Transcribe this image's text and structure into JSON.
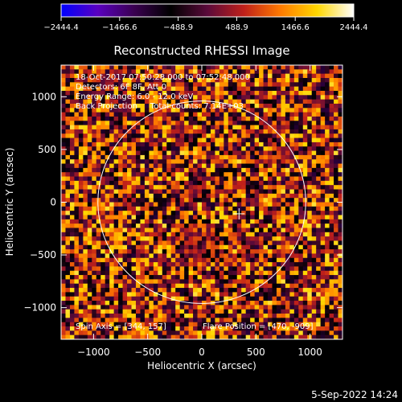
{
  "chart_data": {
    "type": "heatmap",
    "title": "Reconstructed RHESSI Image",
    "xlabel": "Heliocentric X (arcsec)",
    "ylabel": "Heliocentric Y (arcsec)",
    "xlim": [
      -1300,
      1300
    ],
    "ylim": [
      -1300,
      1300
    ],
    "xticks": [
      -1000,
      -500,
      0,
      500,
      1000
    ],
    "yticks": [
      -1000,
      -500,
      0,
      500,
      1000
    ],
    "xtick_labels": [
      "−1000",
      "−500",
      "0",
      "500",
      "1000"
    ],
    "ytick_labels": [
      "−1000",
      "−500",
      "0",
      "500",
      "1000"
    ],
    "colorbar": {
      "min": -2444.4,
      "max": 2444.4,
      "ticks": [
        -2444.4,
        -1466.6,
        -488.9,
        488.9,
        1466.6,
        2444.4
      ],
      "tick_labels": [
        "−2444.4",
        "−1466.6",
        "−488.9",
        "488.9",
        "1466.6",
        "2444.4"
      ],
      "colormap": [
        "#0000ff",
        "#5a00c0",
        "#3a0050",
        "#000000",
        "#5a0a3a",
        "#c0201a",
        "#ff7a00",
        "#ffd700",
        "#ffffff"
      ]
    },
    "annotations": [
      "18-Oct-2017 07:50:28.000 to 07:52:48.000",
      "Detectors: 6F 8F, Att 0",
      "Energy Range: 6.0 - 12.0 keV",
      "Back Projection     Total counts: 7.14E+03"
    ],
    "bottom_annotations": {
      "spin_axis": "Spin Axis = [344, 157]",
      "flare_position": "Flare Position = [470, -909]"
    },
    "solar_limb_radius_arcsec": 960,
    "marker_position": [
      344,
      -110
    ],
    "grid": false
  },
  "footer": {
    "timestamp": "5-Sep-2022 14:24"
  }
}
